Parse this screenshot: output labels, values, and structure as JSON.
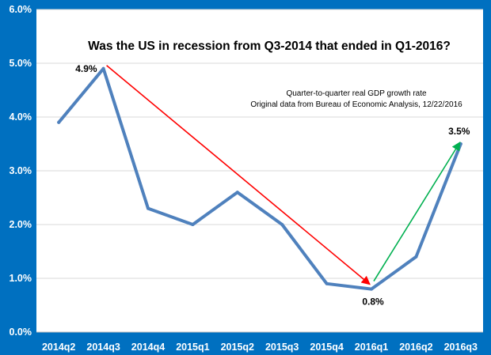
{
  "chart_data": {
    "type": "line",
    "title": "Was the US in recession from Q3-2014 that ended in Q1-2016?",
    "annotation_lines": [
      "Quarter-to-quarter real GDP growth rate",
      "Original data from Bureau of Economic Analysis, 12/22/2016"
    ],
    "categories": [
      "2014q2",
      "2014q3",
      "2014q4",
      "2015q1",
      "2015q2",
      "2015q3",
      "2015q4",
      "2016q1",
      "2016q2",
      "2016q3"
    ],
    "series": [
      {
        "values": [
          3.9,
          4.9,
          2.3,
          2.0,
          2.6,
          2.0,
          0.9,
          0.8,
          1.4,
          3.5
        ],
        "color": "#4f81bd"
      }
    ],
    "y_ticks": [
      "0.0%",
      "1.0%",
      "2.0%",
      "3.0%",
      "4.0%",
      "5.0%",
      "6.0%"
    ],
    "ylim": [
      0,
      6
    ],
    "grid": true,
    "data_labels": [
      {
        "index": 1,
        "text": "4.9%",
        "position": "left"
      },
      {
        "index": 7,
        "text": "0.8%",
        "position": "below"
      },
      {
        "index": 9,
        "text": "3.5%",
        "position": "above"
      }
    ],
    "arrows": [
      {
        "from_index": 1,
        "to_index": 7,
        "color": "#ff0000"
      },
      {
        "from_index": 7,
        "to_index": 9,
        "color": "#00b050"
      }
    ],
    "colors": {
      "background": "#0070c0",
      "plot_area": "#ffffff",
      "gridline": "#d9d9d9",
      "axis_text": "#ffffff"
    }
  }
}
